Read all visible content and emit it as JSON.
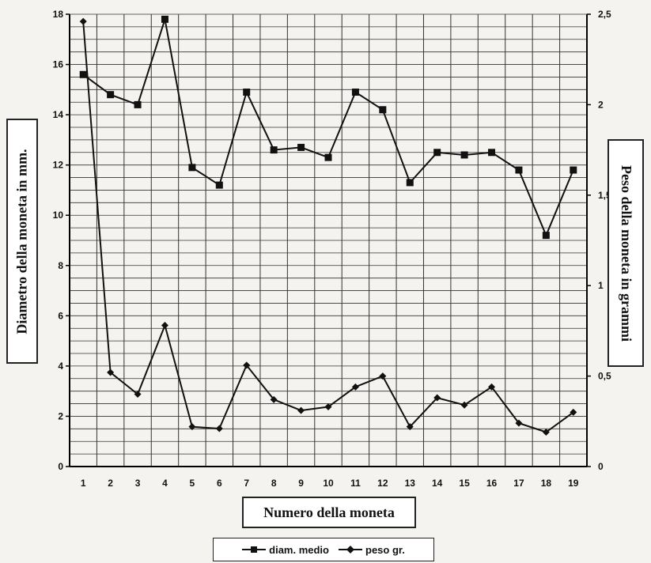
{
  "chart_data": {
    "type": "line",
    "xlabel": "Numero della moneta",
    "ylabel": "Diametro della moneta in mm.",
    "y2label": "Peso della moneta in grammi",
    "categories": [
      "1",
      "2",
      "3",
      "4",
      "5",
      "6",
      "7",
      "8",
      "9",
      "10",
      "11",
      "12",
      "13",
      "14",
      "15",
      "16",
      "17",
      "18",
      "19"
    ],
    "ylim": [
      0,
      18
    ],
    "y2lim": [
      0,
      2.5
    ],
    "yticks": [
      "0",
      "2",
      "4",
      "6",
      "8",
      "10",
      "12",
      "14",
      "16",
      "18"
    ],
    "y2ticks": [
      "0",
      "0,5",
      "1",
      "1,5",
      "2",
      "2,5"
    ],
    "grid": true,
    "legend_position": "bottom",
    "series": [
      {
        "name": "diam. medio",
        "axis": "left",
        "marker": "square",
        "values": [
          15.6,
          14.8,
          14.4,
          17.8,
          11.9,
          11.2,
          14.9,
          12.6,
          12.7,
          12.3,
          14.9,
          14.2,
          11.3,
          12.5,
          12.4,
          12.5,
          11.8,
          9.2,
          11.8
        ]
      },
      {
        "name": "peso gr.",
        "axis": "right",
        "marker": "diamond",
        "values": [
          2.46,
          0.52,
          0.4,
          0.78,
          0.22,
          0.21,
          0.56,
          0.37,
          0.31,
          0.33,
          0.44,
          0.5,
          0.22,
          0.38,
          0.34,
          0.44,
          0.24,
          0.19,
          0.3
        ]
      }
    ]
  }
}
